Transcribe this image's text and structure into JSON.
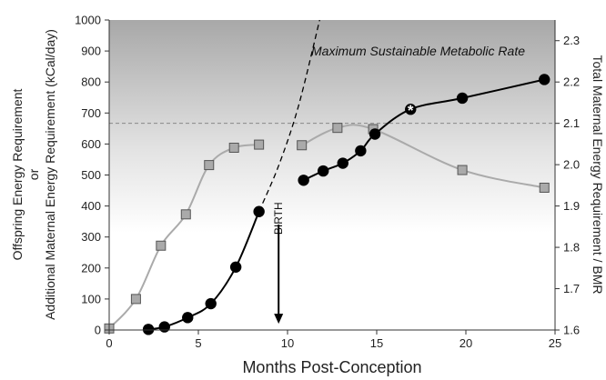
{
  "chart_data": {
    "type": "scatter",
    "xlabel": "Months Post-Conception",
    "ylabel_left": [
      "Offspring Energy Requirement",
      "or",
      "Additional Maternal Energy Requirement  (kCal/day)"
    ],
    "ylabel_right": "Total Maternal Energy Requirement / BMR",
    "xlim": [
      0,
      25
    ],
    "ylim_left": [
      0,
      1000
    ],
    "ylim_right": [
      1.6,
      2.35
    ],
    "xticks": [
      0,
      5,
      10,
      15,
      20,
      25
    ],
    "yticks_left": [
      0,
      100,
      200,
      300,
      400,
      500,
      600,
      700,
      800,
      900,
      1000
    ],
    "yticks_right": [
      1.6,
      1.7,
      1.8,
      1.9,
      2.0,
      2.1,
      2.2,
      2.3
    ],
    "msmr_label": "Maximum Sustainable Metabolic Rate",
    "msmr_value": 2.1,
    "birth_label": "BIRTH",
    "birth_x": 9.5,
    "birth_arrow_from": 340,
    "birth_arrow_to": 20,
    "grid": false,
    "shaded_region": "gradient above ~680 kCal/day",
    "series": [
      {
        "marker": "square",
        "color": "#aaaaaa",
        "x": [
          0,
          1.5,
          2.9,
          4.3,
          5.6,
          7.0,
          8.4
        ],
        "y": [
          5,
          100,
          272,
          373,
          532,
          588,
          598
        ]
      },
      {
        "marker": "square",
        "color": "#aaaaaa",
        "x": [
          10.8,
          12.8,
          14.8,
          19.8,
          24.4
        ],
        "y": [
          596,
          652,
          648,
          516,
          459
        ]
      },
      {
        "marker": "circle",
        "color": "#000000",
        "x": [
          2.2,
          3.1,
          4.4,
          5.7,
          7.1,
          8.4
        ],
        "y": [
          2,
          10,
          40,
          85,
          203,
          382
        ]
      },
      {
        "marker": "circle",
        "color": "#000000",
        "x": [
          10.9,
          12.0,
          13.1,
          14.1,
          14.9,
          19.8,
          24.4
        ],
        "y": [
          483,
          513,
          538,
          578,
          632,
          748,
          808
        ]
      }
    ],
    "extrapolation": {
      "style": "dashed",
      "x": [
        8.4,
        9.5,
        10.6,
        11.8
      ],
      "y": [
        382,
        530,
        720,
        1000
      ]
    },
    "highlight_point": {
      "x": 16.9,
      "y": 712,
      "marker": "*"
    }
  }
}
